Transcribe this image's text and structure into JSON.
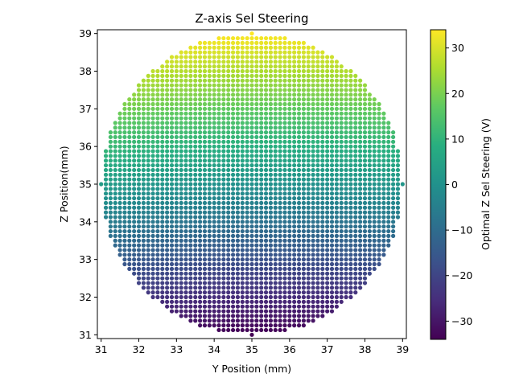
{
  "chart_data": {
    "type": "scatter",
    "title": "Z-axis Sel Steering",
    "xlabel": "Y Position (mm)",
    "ylabel": "Z Position(mm)",
    "xlim": [
      30.9,
      39.1
    ],
    "ylim": [
      30.9,
      39.1
    ],
    "xticks": [
      "31",
      "32",
      "33",
      "34",
      "35",
      "36",
      "37",
      "38",
      "39"
    ],
    "yticks": [
      "31",
      "32",
      "33",
      "34",
      "35",
      "36",
      "37",
      "38",
      "39"
    ],
    "colorbar": {
      "label": "Optimal Z Sel Steering (V)",
      "range": [
        -34,
        34
      ],
      "ticks": [
        "30",
        "20",
        "10",
        "0",
        "−10",
        "−20",
        "−30"
      ],
      "colormap": "viridis"
    },
    "grid": false,
    "marker_color_source": "value",
    "grid_sampling": {
      "center": [
        35,
        35
      ],
      "radius_mm": 4,
      "step_mm": 0.125
    },
    "value_model": "value rises from about -34 V at Z = 31 mm to about +34 V at Z = 39 mm, roughly 0 V near Z = 35 mm"
  }
}
